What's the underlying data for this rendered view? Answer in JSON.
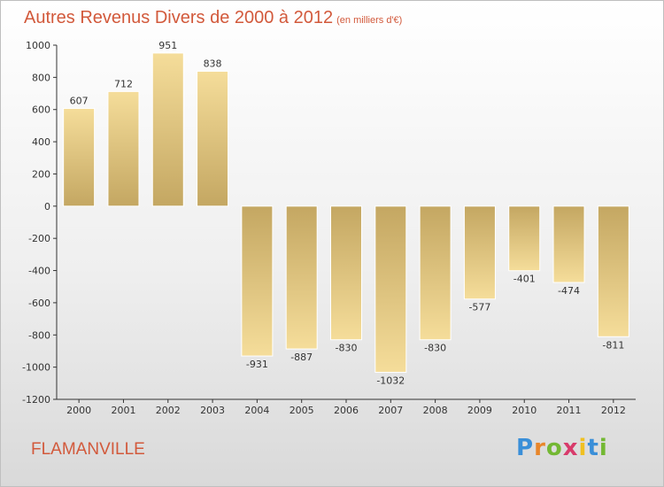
{
  "chart_data": {
    "type": "bar",
    "title": "Autres Revenus Divers de 2000 à 2012",
    "unit_note": "(en milliers d'€)",
    "categories": [
      "2000",
      "2001",
      "2002",
      "2003",
      "2004",
      "2005",
      "2006",
      "2007",
      "2008",
      "2009",
      "2010",
      "2011",
      "2012"
    ],
    "values": [
      607,
      712,
      951,
      838,
      -931,
      -887,
      -830,
      -1032,
      -830,
      -577,
      -401,
      -474,
      -811
    ],
    "value_labels": [
      "607",
      "712",
      "951",
      "838",
      "-931",
      "-887",
      "-830",
      "-1032",
      "-830",
      "-577",
      "-401",
      "-474",
      "-811"
    ],
    "ylim": [
      -1200,
      1000
    ],
    "y_ticks": [
      1000,
      800,
      600,
      400,
      200,
      0,
      -200,
      -400,
      -600,
      -800,
      -1000,
      -1200
    ],
    "y_tick_labels": [
      "1000",
      "800",
      "600",
      "400",
      "200",
      "0",
      "-200",
      "-400",
      "-600",
      "-800",
      "-1000",
      "-1200"
    ],
    "xlabel": "",
    "ylabel": "",
    "grid": false,
    "legend": "none",
    "bar_color_light": "#f5dd9a",
    "bar_color_dark": "#c4a762"
  },
  "location": "FLAMANVILLE",
  "logo": {
    "letters": [
      "P",
      "r",
      "o",
      "x",
      "i",
      "t",
      "i"
    ],
    "colors": [
      "#3a8fd8",
      "#e8862a",
      "#73b833",
      "#d83b6b",
      "#f0c020",
      "#3a8fd8",
      "#73b833"
    ]
  },
  "colors": {
    "title": "#d2593b",
    "axis": "#333333"
  }
}
